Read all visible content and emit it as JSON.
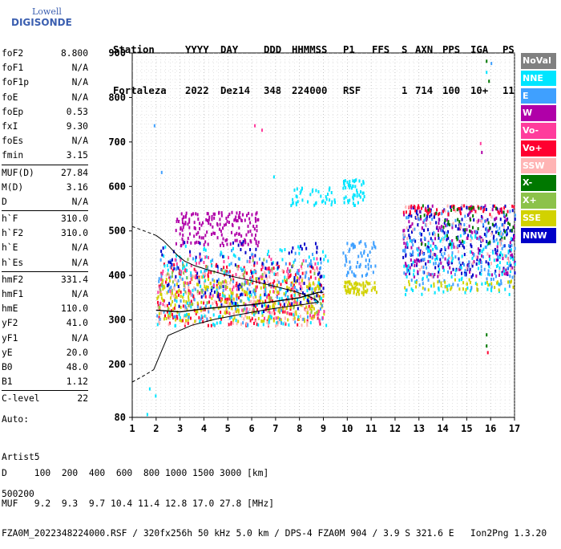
{
  "logo": {
    "line1": "Lowell",
    "line2": "DIGISONDE"
  },
  "header": {
    "labels": [
      "Station",
      "YYYY",
      "DAY",
      "DDD",
      "HHMMSS",
      "P1",
      "FFS",
      "S",
      "AXN",
      "PPS",
      "IGA",
      "PS"
    ],
    "values": [
      "Fortaleza",
      "2022",
      "Dez14",
      "348",
      "224000",
      "RSF",
      "",
      "1",
      "714",
      "100",
      "10+",
      "11"
    ]
  },
  "params": [
    {
      "key": "foF2",
      "value": "8.800"
    },
    {
      "key": "foF1",
      "value": "N/A"
    },
    {
      "key": "foF1p",
      "value": "N/A"
    },
    {
      "key": "foE",
      "value": "N/A"
    },
    {
      "key": "foEp",
      "value": "0.53"
    },
    {
      "key": "fxI",
      "value": "9.30"
    },
    {
      "key": "foEs",
      "value": "N/A"
    },
    {
      "key": "fmin",
      "value": "3.15"
    },
    {
      "sep": true
    },
    {
      "key": "MUF(D)",
      "value": "27.84"
    },
    {
      "key": "M(D)",
      "value": "3.16"
    },
    {
      "key": "D",
      "value": "N/A"
    },
    {
      "sep": true
    },
    {
      "key": "h`F",
      "value": "310.0"
    },
    {
      "key": "h`F2",
      "value": "310.0"
    },
    {
      "key": "h`E",
      "value": "N/A"
    },
    {
      "key": "h`Es",
      "value": "N/A"
    },
    {
      "sep": true
    },
    {
      "key": "hmF2",
      "value": "331.4"
    },
    {
      "key": "hmF1",
      "value": "N/A"
    },
    {
      "key": "hmE",
      "value": "110.0"
    },
    {
      "key": "yF2",
      "value": "41.0"
    },
    {
      "key": "yF1",
      "value": "N/A"
    },
    {
      "key": "yE",
      "value": "20.0"
    },
    {
      "key": "B0",
      "value": "48.0"
    },
    {
      "key": "B1",
      "value": "1.12"
    },
    {
      "sep": true
    },
    {
      "key": "C-level",
      "value": "22"
    }
  ],
  "auto": {
    "line1": "Auto:",
    "line2": "Artist5",
    "line3": "500200"
  },
  "legend": [
    {
      "label": "NoVal",
      "color": "#808080"
    },
    {
      "label": "NNE",
      "color": "#00e5ff"
    },
    {
      "label": "E",
      "color": "#3fa0ff"
    },
    {
      "label": "W",
      "color": "#b000a8"
    },
    {
      "label": "Vo-",
      "color": "#ff3c9c"
    },
    {
      "label": "Vo+",
      "color": "#ff0030"
    },
    {
      "label": "SSW",
      "color": "#ffb4b4"
    },
    {
      "label": "X-",
      "color": "#007800"
    },
    {
      "label": "X+",
      "color": "#8cc24a"
    },
    {
      "label": "SSE",
      "color": "#d2d200"
    },
    {
      "label": "NNW",
      "color": "#0000c8"
    }
  ],
  "footer": {
    "line1": "D     100  200  400  600  800 1000 1500 3000 [km]",
    "line2": "MUF   9.2  9.3  9.7 10.4 11.4 12.8 17.0 27.8 [MHz]",
    "line3": "FZA0M_2022348224000.RSF / 320fx256h 50 kHz 5.0 km / DPS-4 FZA0M 904 / 3.9 S 321.6 E   Ion2Png 1.3.20"
  },
  "chart_data": {
    "type": "scatter",
    "xlim": [
      1,
      17
    ],
    "ylim": [
      80,
      900
    ],
    "x_ticks": [
      1,
      2,
      3,
      4,
      5,
      6,
      7,
      8,
      9,
      10,
      11,
      12,
      13,
      14,
      15,
      16,
      17
    ],
    "y_ticks": [
      80,
      200,
      300,
      400,
      500,
      600,
      700,
      800,
      900
    ],
    "grid": true,
    "legend_position": "right",
    "clusters": [
      {
        "name": "F-trace Vo+",
        "color": "#ff0030",
        "x": [
          2.0,
          9.0
        ],
        "y": [
          290,
          430
        ],
        "count": 260
      },
      {
        "name": "F-trace SSW",
        "color": "#ffb4b4",
        "x": [
          2.0,
          8.8
        ],
        "y": [
          290,
          420
        ],
        "count": 200
      },
      {
        "name": "F-trace SSE",
        "color": "#d2d200",
        "x": [
          2.0,
          9.0
        ],
        "y": [
          300,
          400
        ],
        "count": 260
      },
      {
        "name": "Spread NNE",
        "color": "#00e5ff",
        "x": [
          2.0,
          9.2
        ],
        "y": [
          290,
          470
        ],
        "count": 160
      },
      {
        "name": "Spread E",
        "color": "#3fa0ff",
        "x": [
          2.0,
          9.0
        ],
        "y": [
          290,
          460
        ],
        "count": 140
      },
      {
        "name": "Upper W",
        "color": "#b000a8",
        "x": [
          2.8,
          6.3
        ],
        "y": [
          470,
          545
        ],
        "count": 170
      },
      {
        "name": "Spread NNW",
        "color": "#0000c8",
        "x": [
          2.0,
          9.0
        ],
        "y": [
          320,
          480
        ],
        "count": 120
      },
      {
        "name": "Spread Vo-",
        "color": "#ff3c9c",
        "x": [
          2.0,
          9.0
        ],
        "y": [
          300,
          450
        ],
        "count": 100
      },
      {
        "name": "X+",
        "color": "#8cc24a",
        "x": [
          2.0,
          9.0
        ],
        "y": [
          320,
          440
        ],
        "count": 70
      },
      {
        "name": "High NNE 9-11",
        "color": "#00e5ff",
        "x": [
          9.8,
          10.7
        ],
        "y": [
          560,
          620
        ],
        "count": 50
      },
      {
        "name": "High W 7.5-9",
        "color": "#00e5ff",
        "x": [
          7.5,
          9.5
        ],
        "y": [
          560,
          600
        ],
        "count": 40
      },
      {
        "name": "Mid 10-11",
        "color": "#d2d200",
        "x": [
          9.8,
          11.2
        ],
        "y": [
          360,
          390
        ],
        "count": 60
      },
      {
        "name": "Mid 10-11 b",
        "color": "#3fa0ff",
        "x": [
          9.8,
          11.2
        ],
        "y": [
          400,
          480
        ],
        "count": 60
      },
      {
        "name": "Right NNW",
        "color": "#0000c8",
        "x": [
          12.3,
          17.0
        ],
        "y": [
          400,
          560
        ],
        "count": 220
      },
      {
        "name": "Right W",
        "color": "#b000a8",
        "x": [
          12.3,
          17.0
        ],
        "y": [
          400,
          560
        ],
        "count": 150
      },
      {
        "name": "Right E",
        "color": "#3fa0ff",
        "x": [
          12.3,
          17.0
        ],
        "y": [
          370,
          550
        ],
        "count": 160
      },
      {
        "name": "Right NNE",
        "color": "#00e5ff",
        "x": [
          12.3,
          17.0
        ],
        "y": [
          360,
          500
        ],
        "count": 120
      },
      {
        "name": "Right top Vo+",
        "color": "#ff0030",
        "x": [
          12.3,
          17.0
        ],
        "y": [
          540,
          560
        ],
        "count": 60
      },
      {
        "name": "Right X-",
        "color": "#007800",
        "x": [
          13.0,
          17.0
        ],
        "y": [
          470,
          560
        ],
        "count": 50
      },
      {
        "name": "Right SSE",
        "color": "#d2d200",
        "x": [
          12.3,
          17.0
        ],
        "y": [
          370,
          395
        ],
        "count": 40
      },
      {
        "name": "Right SSW",
        "color": "#ffb4b4",
        "x": [
          12.3,
          17.0
        ],
        "y": [
          400,
          560
        ],
        "count": 50
      }
    ],
    "isolated_points": [
      {
        "x": 1.9,
        "y": 740,
        "color": "#3fa0ff"
      },
      {
        "x": 2.2,
        "y": 635,
        "color": "#3fa0ff"
      },
      {
        "x": 1.7,
        "y": 148,
        "color": "#00e5ff"
      },
      {
        "x": 1.95,
        "y": 132,
        "color": "#00e5ff"
      },
      {
        "x": 1.6,
        "y": 90,
        "color": "#00e5ff"
      },
      {
        "x": 6.4,
        "y": 730,
        "color": "#ff3c9c"
      },
      {
        "x": 6.1,
        "y": 740,
        "color": "#ff3c9c"
      },
      {
        "x": 15.8,
        "y": 885,
        "color": "#007800"
      },
      {
        "x": 15.8,
        "y": 860,
        "color": "#00e5ff"
      },
      {
        "x": 15.9,
        "y": 840,
        "color": "#007800"
      },
      {
        "x": 16.0,
        "y": 880,
        "color": "#3fa0ff"
      },
      {
        "x": 15.55,
        "y": 700,
        "color": "#ff3c9c"
      },
      {
        "x": 15.6,
        "y": 680,
        "color": "#b000a8"
      },
      {
        "x": 15.8,
        "y": 270,
        "color": "#007800"
      },
      {
        "x": 15.8,
        "y": 245,
        "color": "#007800"
      },
      {
        "x": 15.85,
        "y": 230,
        "color": "#ff0030"
      },
      {
        "x": 6.9,
        "y": 625,
        "color": "#00e5ff"
      }
    ],
    "trace": {
      "name": "F2 trace",
      "color": "#000000",
      "points": [
        [
          2.0,
          322
        ],
        [
          3.0,
          318
        ],
        [
          4.0,
          325
        ],
        [
          5.0,
          330
        ],
        [
          6.0,
          334
        ],
        [
          7.0,
          342
        ],
        [
          8.0,
          350
        ],
        [
          8.8,
          362
        ],
        [
          9.0,
          362
        ]
      ]
    },
    "profile": {
      "name": "electron density profile",
      "color": "#000000",
      "dashed_lower": [
        [
          1.0,
          160
        ],
        [
          1.5,
          175
        ],
        [
          1.9,
          188
        ]
      ],
      "solid": [
        [
          1.9,
          188
        ],
        [
          2.5,
          265
        ],
        [
          3.5,
          288
        ],
        [
          4.5,
          302
        ],
        [
          5.5,
          312
        ],
        [
          6.5,
          322
        ],
        [
          7.5,
          330
        ],
        [
          8.2,
          335
        ],
        [
          8.8,
          340
        ],
        [
          8.7,
          345
        ],
        [
          8.3,
          355
        ],
        [
          7.8,
          364
        ],
        [
          7.0,
          375
        ],
        [
          6.0,
          388
        ],
        [
          5.0,
          400
        ],
        [
          4.2,
          412
        ],
        [
          3.6,
          422
        ],
        [
          3.2,
          432
        ],
        [
          2.9,
          445
        ],
        [
          2.6,
          462
        ],
        [
          2.3,
          478
        ],
        [
          2.0,
          490
        ]
      ],
      "dashed_upper": [
        [
          2.0,
          490
        ],
        [
          1.5,
          500
        ],
        [
          1.0,
          510
        ]
      ]
    }
  }
}
